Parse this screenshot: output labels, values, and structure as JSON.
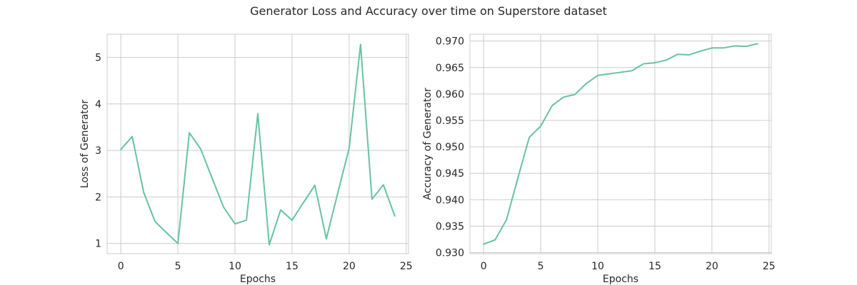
{
  "figure": {
    "title": "Generator Loss and Accuracy over time on Superstore dataset",
    "line_color": "#66c2a5"
  },
  "chart_data": [
    {
      "type": "line",
      "title": "",
      "xlabel": "Epochs",
      "ylabel": "Loss of Generator",
      "xlim": [
        -1.2,
        25.2
      ],
      "ylim": [
        0.78,
        5.5
      ],
      "xticks": [
        0,
        5,
        10,
        15,
        20,
        25
      ],
      "xtick_labels": [
        "0",
        "5",
        "10",
        "15",
        "20",
        "25"
      ],
      "yticks": [
        1,
        2,
        3,
        4,
        5
      ],
      "ytick_labels": [
        "1",
        "2",
        "3",
        "4",
        "5"
      ],
      "grid": true,
      "series": [
        {
          "x": [
            0,
            1,
            2,
            3,
            4,
            5,
            6,
            7,
            8,
            9,
            10,
            11,
            12,
            13,
            14,
            15,
            16,
            17,
            18,
            19,
            20,
            21,
            22,
            23,
            24
          ],
          "values": [
            3.02,
            3.3,
            2.1,
            1.47,
            1.23,
            1.0,
            3.38,
            3.03,
            2.4,
            1.78,
            1.42,
            1.5,
            3.79,
            0.97,
            1.72,
            1.5,
            1.88,
            2.25,
            1.1,
            2.08,
            3.05,
            5.28,
            1.95,
            2.26,
            1.59
          ]
        }
      ]
    },
    {
      "type": "line",
      "title": "",
      "xlabel": "Epochs",
      "ylabel": "Accuracy of Generator",
      "xlim": [
        -1.2,
        25.2
      ],
      "ylim": [
        0.9298,
        0.9713
      ],
      "xticks": [
        0,
        5,
        10,
        15,
        20,
        25
      ],
      "xtick_labels": [
        "0",
        "5",
        "10",
        "15",
        "20",
        "25"
      ],
      "yticks": [
        0.93,
        0.935,
        0.94,
        0.945,
        0.95,
        0.955,
        0.96,
        0.965,
        0.97
      ],
      "ytick_labels": [
        "0.930",
        "0.935",
        "0.940",
        "0.945",
        "0.950",
        "0.955",
        "0.960",
        "0.965",
        "0.970"
      ],
      "grid": true,
      "series": [
        {
          "x": [
            0,
            1,
            2,
            3,
            4,
            5,
            6,
            7,
            8,
            9,
            10,
            11,
            12,
            13,
            14,
            15,
            16,
            17,
            18,
            19,
            20,
            21,
            22,
            23,
            24
          ],
          "values": [
            0.9316,
            0.9324,
            0.9362,
            0.9441,
            0.9518,
            0.9539,
            0.9578,
            0.9594,
            0.9599,
            0.962,
            0.9635,
            0.9638,
            0.9641,
            0.9644,
            0.9657,
            0.9659,
            0.9664,
            0.9675,
            0.9674,
            0.9681,
            0.9687,
            0.9687,
            0.9691,
            0.969,
            0.9695
          ]
        }
      ]
    }
  ]
}
